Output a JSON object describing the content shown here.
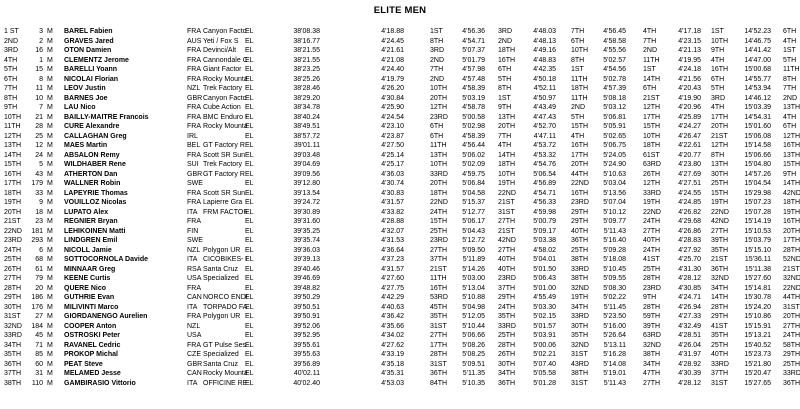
{
  "title": "ELITE MEN",
  "columns": [
    "rank",
    "bib",
    "gender",
    "name",
    "nat",
    "team",
    "cat",
    "total",
    "s1",
    "s1r",
    "s2",
    "s2r",
    "s3",
    "s3r",
    "s4",
    "s4r",
    "s5",
    "s5r",
    "s6",
    "s6r"
  ],
  "rows": [
    [
      "1 ST",
      "3",
      "M",
      "BAREL Fabien",
      "FRA",
      "Canyon Facto",
      "EL",
      "38'08.38",
      "4'18.88",
      "1ST",
      "4'56.36",
      "3RD",
      "4'48.03",
      "7TH",
      "4'56.45",
      "4TH",
      "4'17.18",
      "1ST",
      "14'52.23",
      "6TH"
    ],
    [
      "2ND",
      "2",
      "M",
      "GRAVES Jared",
      "AUS",
      "Yeti / Fox S",
      "EL",
      "38'16.77",
      "4'24.45",
      "8TH",
      "4'54.71",
      "2ND",
      "4'48.13",
      "6TH",
      "4'58.58",
      "7TH",
      "4'23.15",
      "10TH",
      "14'46.75",
      "4TH"
    ],
    [
      "3RD",
      "16",
      "M",
      "OTON Damien",
      "FRA",
      "Devinci/Alt",
      "EL",
      "38'21.55",
      "4'21.61",
      "3RD",
      "5'07.37",
      "18TH",
      "4'49.16",
      "10TH",
      "4'55.56",
      "2ND",
      "4'21.13",
      "9TH",
      "14'41.42",
      "1ST"
    ],
    [
      "4TH",
      "1",
      "M",
      "CLEMENTZ Jerome",
      "FRA",
      "Cannondale O",
      "EL",
      "38'21.55",
      "4'21.08",
      "2ND",
      "5'01.79",
      "16TH",
      "4'48.83",
      "8TH",
      "5'02.57",
      "11TH",
      "4'19.95",
      "4TH",
      "14'47.00",
      "5TH"
    ],
    [
      "5TH",
      "15",
      "M",
      "BARELLI Yoann",
      "FRA",
      "Giant Factor",
      "EL",
      "38'23.25",
      "4'24.40",
      "7TH",
      "4'57.98",
      "6TH",
      "4'42.35",
      "1ST",
      "4'54.56",
      "1ST",
      "4'24.18",
      "16TH",
      "15'00.68",
      "11TH"
    ],
    [
      "6TH",
      "8",
      "M",
      "NICOLAI Florian",
      "FRA",
      "Rocky Mounta",
      "EL",
      "38'25.26",
      "4'19.79",
      "2ND",
      "4'57.48",
      "5TH",
      "4'50.18",
      "11TH",
      "5'02.78",
      "14TH",
      "4'21.56",
      "6TH",
      "14'55.77",
      "8TH"
    ],
    [
      "7TH",
      "11",
      "M",
      "LEOV Justin",
      "NZL",
      "Trek Factory",
      "EL",
      "38'28.46",
      "4'26.20",
      "10TH",
      "4'58.39",
      "8TH",
      "4'52.11",
      "18TH",
      "4'57.39",
      "6TH",
      "4'20.43",
      "5TH",
      "14'53.94",
      "7TH"
    ],
    [
      "8TH",
      "10",
      "M",
      "BARNES Joe",
      "GBR",
      "Canyon Facto",
      "EL",
      "38'29.20",
      "4'30.84",
      "20TH",
      "5'03.19",
      "1ST",
      "4'50.97",
      "11TH",
      "5'08.18",
      "21ST",
      "4'19.90",
      "3RD",
      "14'46.12",
      "2ND"
    ],
    [
      "9TH",
      "7",
      "M",
      "LAU Nico",
      "FRA",
      "Cube Action",
      "EL",
      "38'34.78",
      "4'25.90",
      "12TH",
      "4'58.78",
      "9TH",
      "4'43.49",
      "2ND",
      "5'03.12",
      "12TH",
      "4'20.96",
      "4TH",
      "15'03.39",
      "13TH"
    ],
    [
      "10TH",
      "21",
      "M",
      "BAILLY-MAITRE Francois",
      "FRA",
      "BMC Enduro R",
      "EL",
      "38'40.24",
      "4'24.54",
      "23RD",
      "5'00.58",
      "13TH",
      "4'47.43",
      "5TH",
      "5'06.81",
      "17TH",
      "4'25.89",
      "17TH",
      "14'54.31",
      "4TH"
    ],
    [
      "11TH",
      "28",
      "M",
      "CURE Alexandre",
      "FRA",
      "Rocky Mounta",
      "EL",
      "38'49.51",
      "4'23.10",
      "6TH",
      "5'02.98",
      "20TH",
      "4'52.70",
      "15TH",
      "5'05.91",
      "15TH",
      "4'24.27",
      "20TH",
      "15'01.60",
      "6TH"
    ],
    [
      "12TH",
      "25",
      "M",
      "CALLAGHAN Greg",
      "IRL",
      "",
      "EL",
      "38'57.72",
      "4'23.87",
      "6TH",
      "4'58.39",
      "7TH",
      "4'47.11",
      "4TH",
      "5'02.65",
      "10TH",
      "4'26.47",
      "21ST",
      "15'06.08",
      "12TH"
    ],
    [
      "13TH",
      "12",
      "M",
      "MAES Martin",
      "BEL",
      "GT Factory R",
      "EL",
      "39'01.11",
      "4'27.50",
      "11TH",
      "4'56.44",
      "4TH",
      "4'53.72",
      "16TH",
      "5'06.75",
      "18TH",
      "4'22.61",
      "12TH",
      "15'14.58",
      "16TH"
    ],
    [
      "14TH",
      "24",
      "M",
      "ABSALON Remy",
      "FRA",
      "Scott SR Sun",
      "EL",
      "39'03.48",
      "4'25.14",
      "13TH",
      "5'06.02",
      "14TH",
      "4'53.32",
      "17TH",
      "5'24.05",
      "61ST",
      "4'20.77",
      "8TH",
      "15'06.66",
      "13TH"
    ],
    [
      "15TH",
      "5",
      "M",
      "WILDHABER Rene",
      "SUI",
      "Trek Factory",
      "EL",
      "39'04.69",
      "4'25.17",
      "10TH",
      "5'02.09",
      "18TH",
      "4'54.76",
      "20TH",
      "5'24.90",
      "63RD",
      "4'23.80",
      "13TH",
      "15'04.80",
      "15TH"
    ],
    [
      "16TH",
      "43",
      "M",
      "ATHERTON Dan",
      "GBR",
      "GT Factory R",
      "EL",
      "39'09.56",
      "4'36.03",
      "33RD",
      "4'59.75",
      "10TH",
      "5'06.54",
      "44TH",
      "5'10.63",
      "26TH",
      "4'27.69",
      "30TH",
      "14'57.26",
      "9TH"
    ],
    [
      "17TH",
      "179",
      "M",
      "WALLNER Robin",
      "SWE",
      "",
      "EL",
      "39'12.80",
      "4'30.74",
      "20TH",
      "5'06.84",
      "19TH",
      "4'56.89",
      "22ND",
      "5'03.04",
      "12TH",
      "4'27.51",
      "25TH",
      "15'04.54",
      "14TH"
    ],
    [
      "18TH",
      "33",
      "M",
      "LAPEYRIE Thomas",
      "FRA",
      "Scott SR Sun",
      "EL",
      "39'13.54",
      "4'30.83",
      "18TH",
      "5'04.58",
      "22ND",
      "4'54.71",
      "16TH",
      "5'13.56",
      "33RD",
      "4'24.55",
      "15TH",
      "15'29.98",
      "42ND"
    ],
    [
      "19TH",
      "9",
      "M",
      "VOUILLOZ Nicolas",
      "FRA",
      "Lapierre Gra",
      "EL",
      "39'24.72",
      "4'31.57",
      "22ND",
      "5'15.37",
      "21ST",
      "4'56.33",
      "23RD",
      "5'07.04",
      "19TH",
      "4'24.85",
      "19TH",
      "15'07.23",
      "18TH"
    ],
    [
      "20TH",
      "18",
      "M",
      "LUPATO Alex",
      "ITA",
      "FRM FACTORY",
      "EL",
      "39'30.89",
      "4'33.82",
      "24TH",
      "5'12.77",
      "31ST",
      "4'59.98",
      "29TH",
      "5'10.12",
      "22ND",
      "4'26.82",
      "22ND",
      "15'07.28",
      "19TH"
    ],
    [
      "21ST",
      "23",
      "M",
      "REGNIER Bryan",
      "FRA",
      "",
      "EL",
      "39'31.60",
      "4'28.88",
      "15TH",
      "5'06.17",
      "27TH",
      "5'00.79",
      "29TH",
      "5'09.77",
      "24TH",
      "4'29.68",
      "42ND",
      "15'14.19",
      "16TH"
    ],
    [
      "22ND",
      "181",
      "M",
      "LEHIKOINEN Matti",
      "FIN",
      "",
      "EL",
      "39'35.25",
      "4'32.07",
      "25TH",
      "5'04.43",
      "21ST",
      "5'09.17",
      "40TH",
      "5'11.43",
      "27TH",
      "4'26.86",
      "27TH",
      "15'10.53",
      "20TH"
    ],
    [
      "23RD",
      "293",
      "M",
      "LINDGREN Emil",
      "SWE",
      "",
      "EL",
      "39'35.74",
      "4'31.53",
      "23RD",
      "5'12.72",
      "42ND",
      "5'03.38",
      "36TH",
      "5'16.40",
      "40TH",
      "4'28.83",
      "39TH",
      "15'03.79",
      "17TH"
    ],
    [
      "24TH",
      "6",
      "M",
      "NICOLL Jamie",
      "NZL",
      "Polygon UR",
      "EL",
      "39'36.03",
      "4'36.64",
      "27TH",
      "5'09.50",
      "27TH",
      "4'58.02",
      "25TH",
      "5'09.28",
      "24TH",
      "4'27.92",
      "35TH",
      "15'15.10",
      "28TH"
    ],
    [
      "25TH",
      "68",
      "M",
      "SOTTOCORNOLA Davide",
      "ITA",
      "CICOBIKES- D",
      "EL",
      "39'39.13",
      "4'37.23",
      "37TH",
      "5'11.89",
      "40TH",
      "5'04.01",
      "38TH",
      "5'18.08",
      "41ST",
      "4'25.70",
      "21ST",
      "15'36.11",
      "52ND"
    ],
    [
      "26TH",
      "61",
      "M",
      "MINNAAR Greg",
      "RSA",
      "Santa Cruz",
      "EL",
      "39'40.46",
      "4'31.57",
      "21ST",
      "5'14.26",
      "40TH",
      "5'01.50",
      "33RD",
      "5'10.45",
      "25TH",
      "4'31.30",
      "36TH",
      "15'11.38",
      "21ST"
    ],
    [
      "27TH",
      "79",
      "M",
      "KEENE Curtis",
      "USA",
      "Specialized",
      "EL",
      "39'46.69",
      "4'27.60",
      "11TH",
      "5'03.00",
      "23RD",
      "5'06.43",
      "38TH",
      "5'09.55",
      "28TH",
      "4'28.12",
      "32ND",
      "15'27.60",
      "32ND"
    ],
    [
      "28TH",
      "20",
      "M",
      "QUERE Nico",
      "FRA",
      "",
      "EL",
      "39'48.82",
      "4'27.75",
      "16TH",
      "5'13.04",
      "37TH",
      "5'01.00",
      "32ND",
      "5'08.30",
      "23RD",
      "4'30.85",
      "34TH",
      "15'14.81",
      "22ND"
    ],
    [
      "29TH",
      "186",
      "M",
      "GUTHRIE Evan",
      "CAN",
      "NORCO ENDURO",
      "EL",
      "39'50.29",
      "4'42.29",
      "53RD",
      "5'10.88",
      "29TH",
      "4'55.49",
      "19TH",
      "5'02.22",
      "9TH",
      "4'24.71",
      "14TH",
      "15'30.78",
      "44TH"
    ],
    [
      "30TH",
      "176",
      "M",
      "MILIVINTI Marco",
      "ITA",
      "TORPADO FACT",
      "EL",
      "39'50.51",
      "4'40.63",
      "45TH",
      "5'04.98",
      "24TH",
      "5'03.30",
      "34TH",
      "5'11.45",
      "28TH",
      "4'26.94",
      "28TH",
      "15'24.20",
      "31ST"
    ],
    [
      "31ST",
      "27",
      "M",
      "GIORDANENGO Aurelien",
      "FRA",
      "Polygon UR",
      "EL",
      "39'50.91",
      "4'36.42",
      "35TH",
      "5'12.05",
      "35TH",
      "5'02.15",
      "33RD",
      "5'23.50",
      "59TH",
      "4'27.33",
      "29TH",
      "15'10.86",
      "20TH"
    ],
    [
      "32ND",
      "184",
      "M",
      "COOPER Anton",
      "NZL",
      "",
      "EL",
      "39'52.06",
      "4'35.66",
      "31ST",
      "5'10.44",
      "33RD",
      "5'01.57",
      "30TH",
      "5'16.00",
      "39TH",
      "4'32.49",
      "41ST",
      "15'15.91",
      "27TH"
    ],
    [
      "33RD",
      "45",
      "M",
      "OSTROSKI Peter",
      "USA",
      "",
      "EL",
      "39'52.95",
      "4'34.02",
      "27TH",
      "5'06.66",
      "25TH",
      "5'03.91",
      "35TH",
      "5'26.64",
      "63RD",
      "4'28.51",
      "35TH",
      "15'13.21",
      "24TH"
    ],
    [
      "34TH",
      "71",
      "M",
      "RAVANEL Cedric",
      "FRA",
      "GT Pulse Ses",
      "EL",
      "39'55.61",
      "4'27.62",
      "17TH",
      "5'08.26",
      "28TH",
      "5'00.06",
      "32ND",
      "5'13.11",
      "32ND",
      "4'26.04",
      "25TH",
      "15'40.52",
      "58TH"
    ],
    [
      "35TH",
      "85",
      "M",
      "PROKOP Michal",
      "CZE",
      "Specialized",
      "EL",
      "39'55.63",
      "4'33.19",
      "28TH",
      "5'08.25",
      "26TH",
      "5'02.21",
      "31ST",
      "5'16.28",
      "38TH",
      "4'31.97",
      "40TH",
      "15'23.73",
      "29TH"
    ],
    [
      "36TH",
      "60",
      "M",
      "PEAT Steve",
      "GBR",
      "Santa Cruz",
      "EL",
      "39'56.89",
      "4'35.18",
      "31ST",
      "5'09.51",
      "30TH",
      "5'07.40",
      "43RD",
      "5'14.08",
      "34TH",
      "4'28.92",
      "33RD",
      "15'21.80",
      "25TH"
    ],
    [
      "37TH",
      "31",
      "M",
      "MELAMED Jesse",
      "CAN",
      "Rocky Mounta",
      "EL",
      "40'02.11",
      "4'35.31",
      "36TH",
      "5'11.35",
      "34TH",
      "5'05.58",
      "38TH",
      "5'19.01",
      "47TH",
      "4'30.39",
      "37TH",
      "15'20.47",
      "33RD"
    ],
    [
      "38TH",
      "110",
      "M",
      "GAMBIRASIO Vittorio",
      "ITA",
      "OFFICINE RED",
      "EL",
      "40'02.40",
      "4'53.03",
      "84TH",
      "5'10.35",
      "36TH",
      "5'01.28",
      "31ST",
      "5'11.43",
      "27TH",
      "4'28.12",
      "31ST",
      "15'27.65",
      "36TH"
    ]
  ]
}
